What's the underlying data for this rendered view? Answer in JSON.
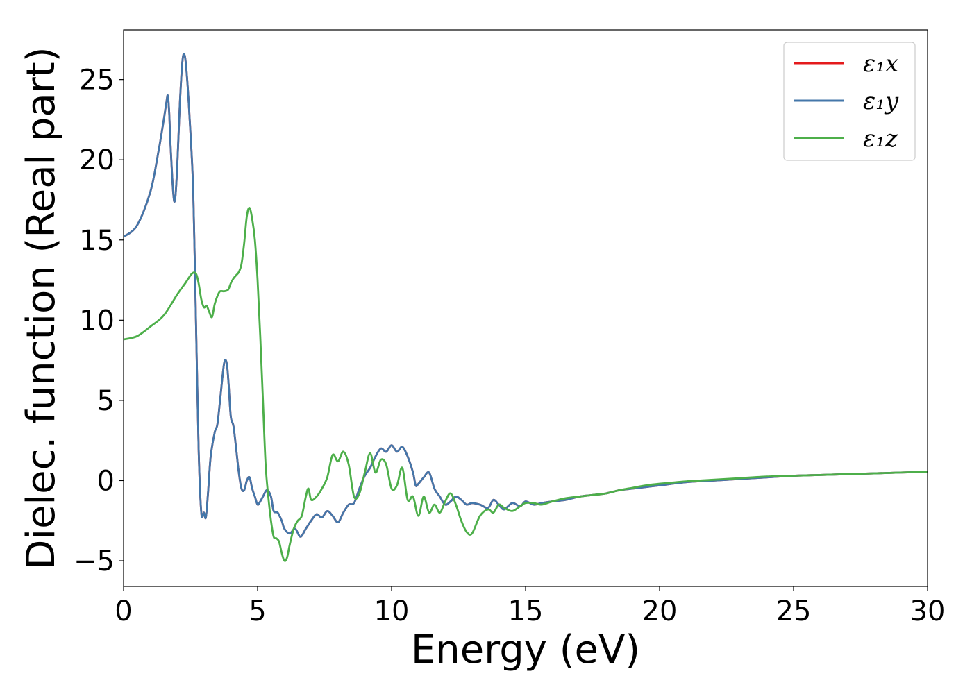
{
  "chart_data": {
    "type": "line",
    "xlabel": "Energy (eV)",
    "ylabel": "Dielec. function (Real part)",
    "xlim": [
      0,
      30
    ],
    "ylim": [
      -6.6,
      28.1
    ],
    "xticks": [
      0,
      5,
      10,
      15,
      20,
      25,
      30
    ],
    "yticks": [
      -5,
      0,
      5,
      10,
      15,
      20,
      25
    ],
    "xtick_labels": [
      "0",
      "5",
      "10",
      "15",
      "20",
      "25",
      "30"
    ],
    "ytick_labels": [
      "−5",
      "0",
      "5",
      "10",
      "15",
      "20",
      "25"
    ],
    "grid": false,
    "legend_position": "top-right",
    "series": [
      {
        "name": "ε₁x",
        "color": "#e41a1c",
        "x": [
          0,
          0.5,
          1.0,
          1.3,
          1.5,
          1.6,
          1.65,
          1.7,
          1.75,
          1.85,
          1.92,
          2.0,
          2.1,
          2.2,
          2.28,
          2.35,
          2.45,
          2.6,
          2.7,
          2.8,
          2.9,
          3.0,
          3.07,
          3.15,
          3.25,
          3.4,
          3.5,
          3.6,
          3.75,
          3.85,
          3.92,
          4.0,
          4.1,
          4.2,
          4.3,
          4.4,
          4.5,
          4.6,
          4.7,
          4.8,
          4.9,
          5.0,
          5.1,
          5.2,
          5.35,
          5.5,
          5.6,
          5.75,
          5.9,
          6.0,
          6.2,
          6.4,
          6.6,
          6.8,
          7.0,
          7.2,
          7.4,
          7.6,
          7.8,
          8.0,
          8.2,
          8.4,
          8.6,
          8.8,
          9.0,
          9.2,
          9.4,
          9.6,
          9.8,
          10.0,
          10.2,
          10.4,
          10.6,
          10.8,
          10.9,
          11.0,
          11.2,
          11.4,
          11.6,
          11.8,
          12.0,
          12.2,
          12.4,
          12.6,
          12.8,
          13.0,
          13.3,
          13.6,
          13.8,
          14.0,
          14.2,
          14.5,
          14.8,
          15.0,
          15.3,
          15.6,
          16.0,
          16.5,
          17.0,
          17.5,
          18.0,
          18.5,
          19.0,
          19.5,
          20.0,
          21.0,
          22.0,
          23.0,
          24.0,
          25.0,
          26.0,
          27.0,
          28.0,
          29.0,
          30.0
        ],
        "y": [
          15.2,
          15.9,
          18.0,
          20.5,
          22.5,
          23.6,
          24.0,
          23.0,
          21.0,
          18.0,
          17.5,
          19.5,
          23.5,
          26.2,
          26.5,
          25.5,
          23.0,
          18.0,
          10.0,
          2.0,
          -2.0,
          -2.0,
          -2.3,
          -0.8,
          1.5,
          3.0,
          3.5,
          5.0,
          7.3,
          7.3,
          6.0,
          4.0,
          3.4,
          2.0,
          0.5,
          -0.5,
          -0.6,
          0.0,
          0.2,
          -0.5,
          -1.0,
          -1.5,
          -1.3,
          -1.0,
          -0.6,
          -1.0,
          -1.9,
          -2.0,
          -2.5,
          -3.0,
          -3.3,
          -3.0,
          -3.5,
          -3.0,
          -2.5,
          -2.1,
          -2.3,
          -1.9,
          -2.2,
          -2.6,
          -2.0,
          -1.5,
          -1.4,
          -0.5,
          0.3,
          0.8,
          1.5,
          2.0,
          1.8,
          2.2,
          1.8,
          2.1,
          1.5,
          0.5,
          -0.3,
          -0.2,
          0.2,
          0.5,
          -0.5,
          -1.0,
          -1.5,
          -1.3,
          -1.0,
          -1.2,
          -1.5,
          -1.4,
          -1.5,
          -1.7,
          -1.2,
          -1.5,
          -1.8,
          -1.4,
          -1.6,
          -1.3,
          -1.5,
          -1.4,
          -1.3,
          -1.2,
          -1.0,
          -0.9,
          -0.8,
          -0.6,
          -0.5,
          -0.4,
          -0.3,
          -0.1,
          0.0,
          0.1,
          0.2,
          0.3,
          0.35,
          0.4,
          0.45,
          0.5,
          0.55
        ]
      },
      {
        "name": "ε₁y",
        "color": "#4477aa",
        "x": [
          0,
          0.5,
          1.0,
          1.3,
          1.5,
          1.6,
          1.65,
          1.7,
          1.75,
          1.85,
          1.92,
          2.0,
          2.1,
          2.2,
          2.28,
          2.35,
          2.45,
          2.6,
          2.7,
          2.8,
          2.9,
          3.0,
          3.07,
          3.15,
          3.25,
          3.4,
          3.5,
          3.6,
          3.75,
          3.85,
          3.92,
          4.0,
          4.1,
          4.2,
          4.3,
          4.4,
          4.5,
          4.6,
          4.7,
          4.8,
          4.9,
          5.0,
          5.1,
          5.2,
          5.35,
          5.5,
          5.6,
          5.75,
          5.9,
          6.0,
          6.2,
          6.4,
          6.6,
          6.8,
          7.0,
          7.2,
          7.4,
          7.6,
          7.8,
          8.0,
          8.2,
          8.4,
          8.6,
          8.8,
          9.0,
          9.2,
          9.4,
          9.6,
          9.8,
          10.0,
          10.2,
          10.4,
          10.6,
          10.8,
          10.9,
          11.0,
          11.2,
          11.4,
          11.6,
          11.8,
          12.0,
          12.2,
          12.4,
          12.6,
          12.8,
          13.0,
          13.3,
          13.6,
          13.8,
          14.0,
          14.2,
          14.5,
          14.8,
          15.0,
          15.3,
          15.6,
          16.0,
          16.5,
          17.0,
          17.5,
          18.0,
          18.5,
          19.0,
          19.5,
          20.0,
          21.0,
          22.0,
          23.0,
          24.0,
          25.0,
          26.0,
          27.0,
          28.0,
          29.0,
          30.0
        ],
        "y": [
          15.2,
          15.9,
          18.0,
          20.5,
          22.5,
          23.6,
          24.0,
          23.0,
          21.0,
          18.0,
          17.5,
          19.5,
          23.5,
          26.2,
          26.5,
          25.5,
          23.0,
          18.0,
          10.0,
          2.0,
          -2.0,
          -2.0,
          -2.3,
          -0.8,
          1.5,
          3.0,
          3.5,
          5.0,
          7.3,
          7.3,
          6.0,
          4.0,
          3.4,
          2.0,
          0.5,
          -0.5,
          -0.6,
          0.0,
          0.2,
          -0.5,
          -1.0,
          -1.5,
          -1.3,
          -1.0,
          -0.6,
          -1.0,
          -1.9,
          -2.0,
          -2.5,
          -3.0,
          -3.3,
          -3.0,
          -3.5,
          -3.0,
          -2.5,
          -2.1,
          -2.3,
          -1.9,
          -2.2,
          -2.6,
          -2.0,
          -1.5,
          -1.4,
          -0.5,
          0.3,
          0.8,
          1.5,
          2.0,
          1.8,
          2.2,
          1.8,
          2.1,
          1.5,
          0.5,
          -0.3,
          -0.2,
          0.2,
          0.5,
          -0.5,
          -1.0,
          -1.5,
          -1.3,
          -1.0,
          -1.2,
          -1.5,
          -1.4,
          -1.5,
          -1.7,
          -1.2,
          -1.5,
          -1.8,
          -1.4,
          -1.6,
          -1.3,
          -1.5,
          -1.4,
          -1.3,
          -1.2,
          -1.0,
          -0.9,
          -0.8,
          -0.6,
          -0.5,
          -0.4,
          -0.3,
          -0.1,
          0.0,
          0.1,
          0.2,
          0.3,
          0.35,
          0.4,
          0.45,
          0.5,
          0.55
        ]
      },
      {
        "name": "ε₁z",
        "color": "#4daf4a",
        "x": [
          0,
          0.5,
          1.0,
          1.5,
          2.0,
          2.3,
          2.55,
          2.7,
          2.8,
          2.9,
          3.0,
          3.1,
          3.2,
          3.3,
          3.4,
          3.5,
          3.6,
          3.75,
          3.9,
          4.0,
          4.1,
          4.2,
          4.3,
          4.4,
          4.5,
          4.6,
          4.7,
          4.8,
          4.9,
          5.0,
          5.1,
          5.2,
          5.3,
          5.4,
          5.5,
          5.6,
          5.7,
          5.8,
          5.9,
          6.0,
          6.1,
          6.2,
          6.35,
          6.5,
          6.65,
          6.8,
          6.9,
          7.0,
          7.2,
          7.4,
          7.6,
          7.8,
          8.0,
          8.2,
          8.4,
          8.6,
          8.8,
          9.0,
          9.2,
          9.4,
          9.6,
          9.8,
          10.0,
          10.2,
          10.4,
          10.6,
          10.8,
          11.0,
          11.2,
          11.4,
          11.6,
          11.8,
          12.0,
          12.2,
          12.4,
          12.6,
          12.8,
          13.0,
          13.3,
          13.6,
          13.8,
          14.0,
          14.2,
          14.5,
          14.8,
          15.0,
          15.3,
          15.6,
          16.0,
          16.5,
          17.0,
          17.5,
          18.0,
          18.5,
          19.0,
          19.5,
          20.0,
          21.0,
          22.0,
          23.0,
          24.0,
          25.0,
          26.0,
          27.0,
          28.0,
          29.0,
          30.0
        ],
        "y": [
          8.8,
          9.0,
          9.6,
          10.3,
          11.6,
          12.3,
          12.9,
          12.9,
          12.3,
          11.3,
          10.8,
          10.9,
          10.5,
          10.2,
          11.0,
          11.5,
          11.8,
          11.8,
          11.9,
          12.3,
          12.6,
          12.8,
          13.0,
          13.5,
          14.8,
          16.5,
          17.0,
          16.3,
          15.0,
          12.5,
          9.0,
          5.0,
          1.0,
          -1.0,
          -2.5,
          -3.5,
          -3.6,
          -3.8,
          -4.5,
          -5.0,
          -4.8,
          -4.0,
          -3.0,
          -2.5,
          -2.2,
          -1.0,
          -0.5,
          -1.2,
          -1.0,
          -0.5,
          0.2,
          1.6,
          1.2,
          1.8,
          1.0,
          -1.0,
          -0.8,
          0.5,
          1.7,
          0.5,
          1.3,
          1.0,
          -0.5,
          -0.3,
          0.8,
          -1.2,
          -1.0,
          -2.2,
          -1.0,
          -2.0,
          -1.5,
          -2.0,
          -1.3,
          -0.8,
          -1.5,
          -2.5,
          -3.2,
          -3.3,
          -2.2,
          -1.8,
          -2.0,
          -1.5,
          -1.7,
          -1.9,
          -1.6,
          -1.4,
          -1.4,
          -1.5,
          -1.3,
          -1.1,
          -1.0,
          -0.9,
          -0.8,
          -0.6,
          -0.45,
          -0.3,
          -0.2,
          -0.05,
          0.05,
          0.15,
          0.25,
          0.3,
          0.35,
          0.4,
          0.45,
          0.5,
          0.55
        ]
      }
    ]
  }
}
